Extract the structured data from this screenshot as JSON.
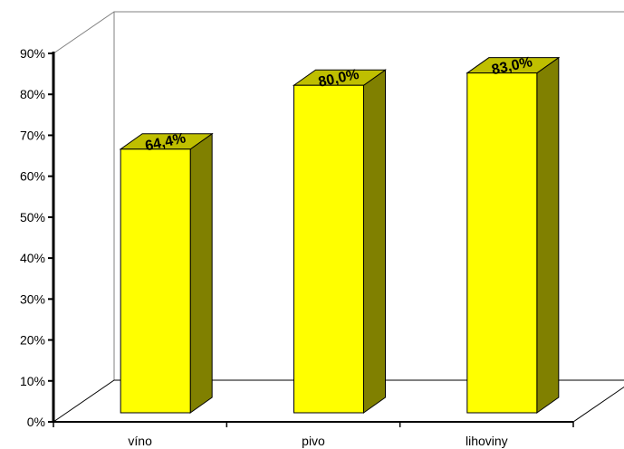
{
  "chart_data": {
    "type": "bar",
    "categories": [
      "víno",
      "pivo",
      "lihoviny"
    ],
    "values": [
      64.4,
      80.0,
      83.0
    ],
    "value_labels": [
      "64,4%",
      "80,0%",
      "83,0%"
    ],
    "title": "",
    "xlabel": "",
    "ylabel": "",
    "ylim": [
      0,
      90
    ],
    "yticks": [
      "0%",
      "10%",
      "20%",
      "30%",
      "40%",
      "50%",
      "60%",
      "70%",
      "80%",
      "90%"
    ],
    "grid": false,
    "legend": "none",
    "style": "3d-column",
    "colors": {
      "bar_front": "#ffff00",
      "bar_top": "#bfbf00",
      "bar_side": "#808000",
      "axis": "#000000",
      "wall": "#808080"
    }
  }
}
